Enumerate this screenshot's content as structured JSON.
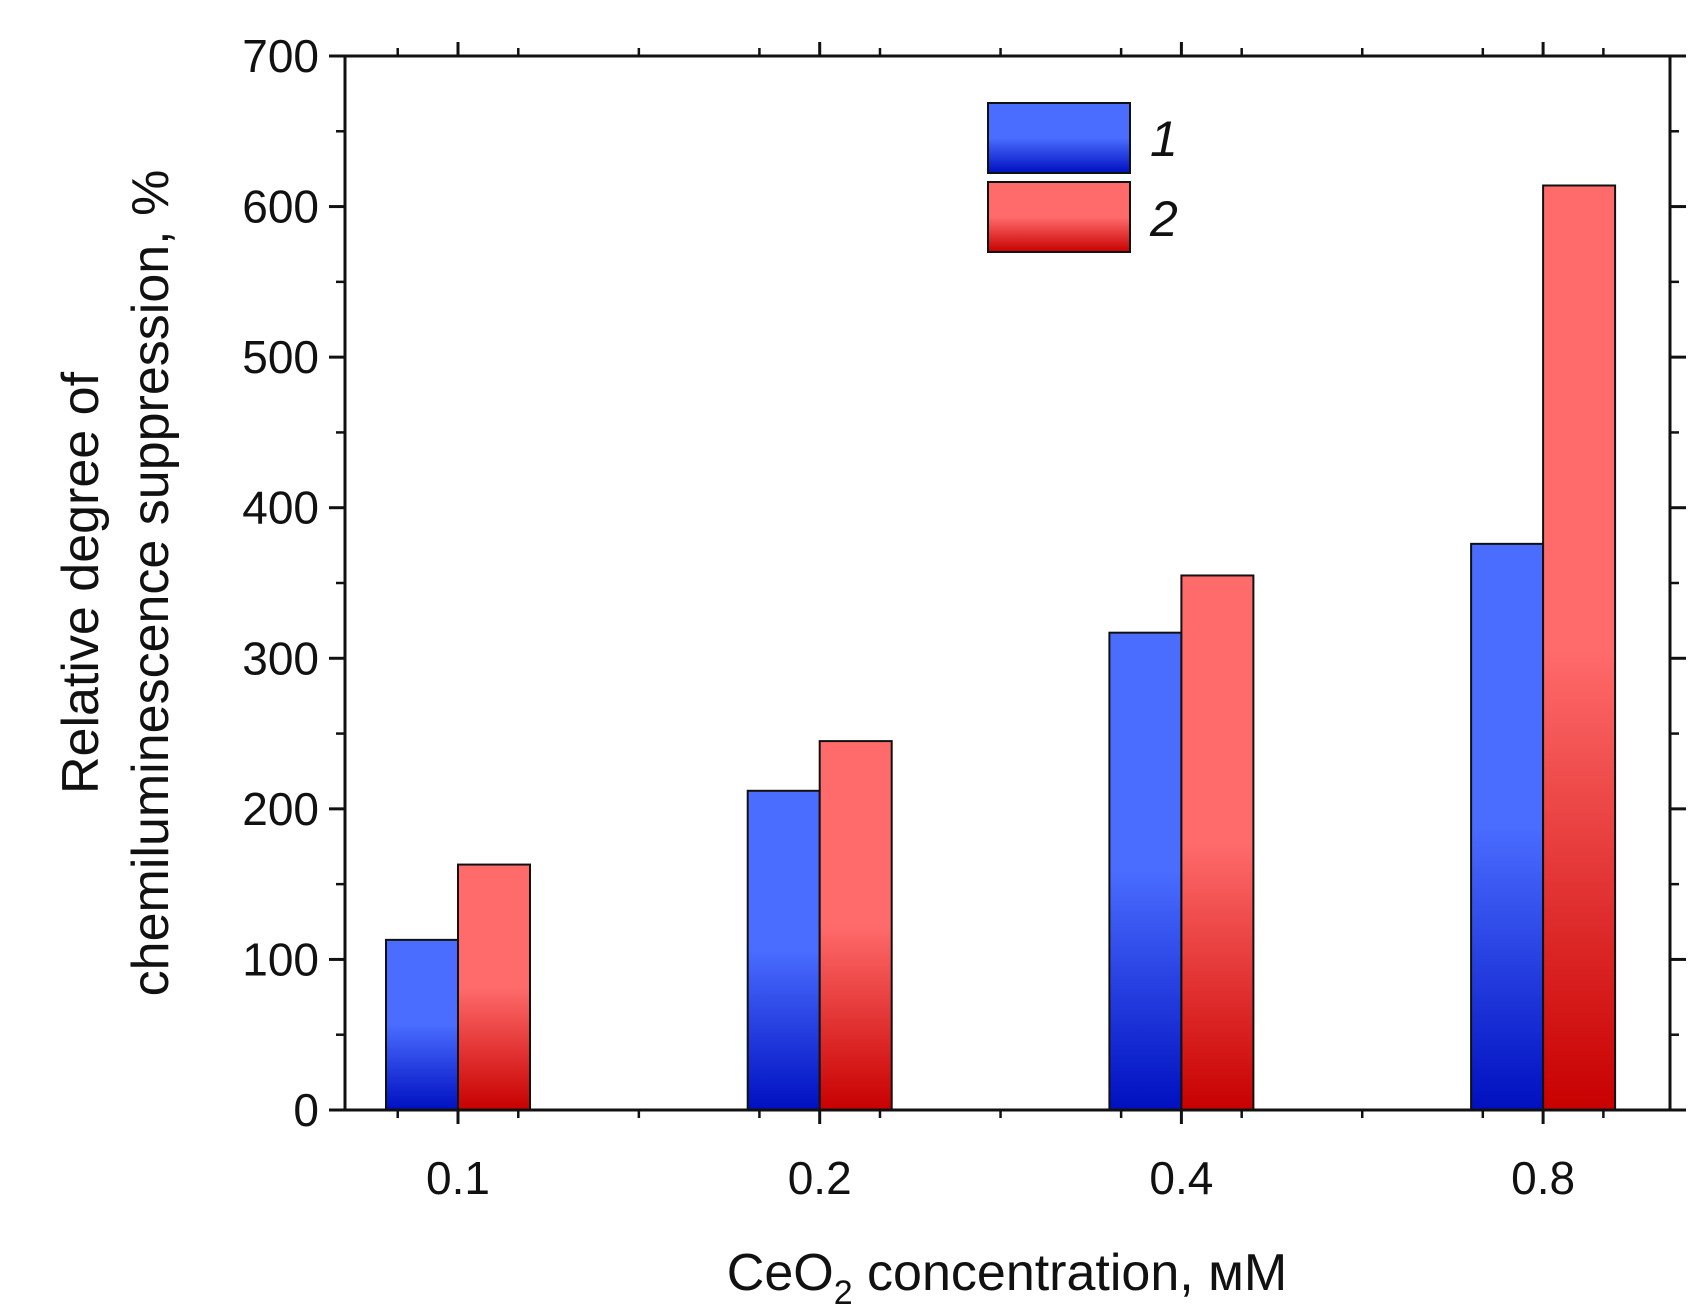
{
  "chart_data": {
    "type": "bar",
    "categories": [
      "0.1",
      "0.2",
      "0.4",
      "0.8"
    ],
    "series": [
      {
        "name": "1",
        "values": [
          113,
          212,
          317,
          376
        ],
        "color": "#4a6cff",
        "color_dark": "#0010c0"
      },
      {
        "name": "2",
        "values": [
          163,
          245,
          355,
          614
        ],
        "color": "#ff6b6b",
        "color_dark": "#c80000"
      }
    ],
    "ylim": [
      0,
      700
    ],
    "yticks": [
      "0",
      "100",
      "200",
      "300",
      "400",
      "500",
      "600",
      "700"
    ],
    "ylabel_line1": "Relative degree of",
    "ylabel_line2": "chemiluminescence suppression, %",
    "xlabel_prefix": "CeO",
    "xlabel_sub": "2",
    "xlabel_suffix": " concentration, мМ",
    "legend_position": "top-center",
    "grid": false
  }
}
